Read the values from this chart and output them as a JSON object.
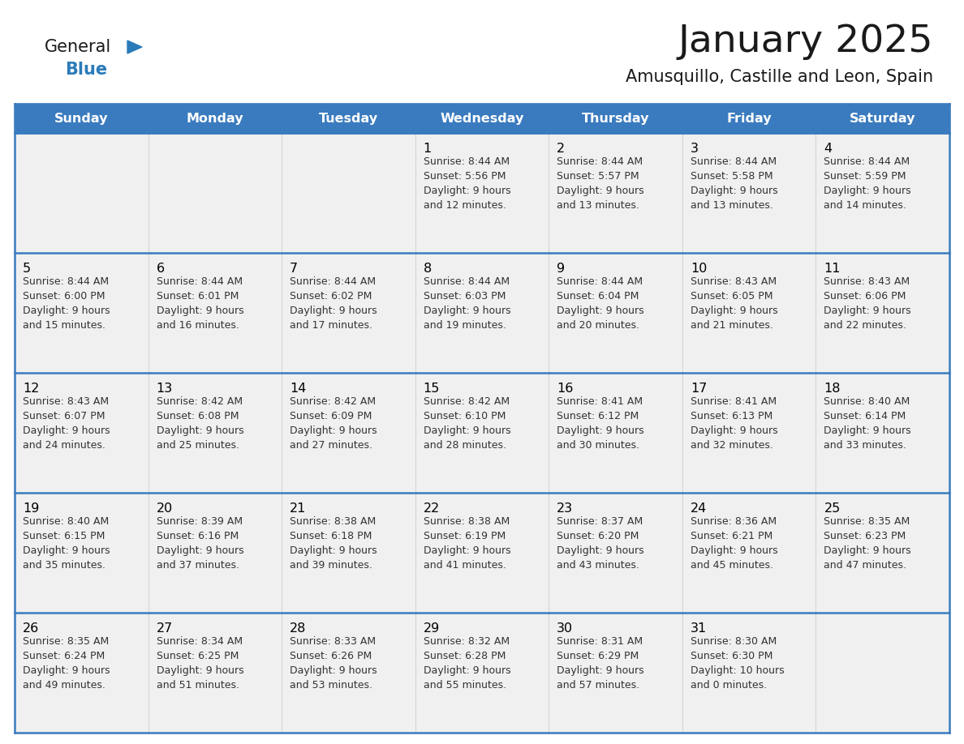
{
  "title": "January 2025",
  "subtitle": "Amusquillo, Castille and Leon, Spain",
  "days_of_week": [
    "Sunday",
    "Monday",
    "Tuesday",
    "Wednesday",
    "Thursday",
    "Friday",
    "Saturday"
  ],
  "header_bg": "#3A7BBF",
  "header_text": "#FFFFFF",
  "row_bg": "#F0F0F0",
  "cell_text": "#333333",
  "day_num_color": "#000000",
  "border_color": "#3A7BBF",
  "title_color": "#1a1a1a",
  "subtitle_color": "#1a1a1a",
  "logo_general_color": "#1a1a1a",
  "logo_blue_color": "#2B7BB9",
  "calendar_data": [
    [
      "",
      "",
      "",
      "1\nSunrise: 8:44 AM\nSunset: 5:56 PM\nDaylight: 9 hours\nand 12 minutes.",
      "2\nSunrise: 8:44 AM\nSunset: 5:57 PM\nDaylight: 9 hours\nand 13 minutes.",
      "3\nSunrise: 8:44 AM\nSunset: 5:58 PM\nDaylight: 9 hours\nand 13 minutes.",
      "4\nSunrise: 8:44 AM\nSunset: 5:59 PM\nDaylight: 9 hours\nand 14 minutes."
    ],
    [
      "5\nSunrise: 8:44 AM\nSunset: 6:00 PM\nDaylight: 9 hours\nand 15 minutes.",
      "6\nSunrise: 8:44 AM\nSunset: 6:01 PM\nDaylight: 9 hours\nand 16 minutes.",
      "7\nSunrise: 8:44 AM\nSunset: 6:02 PM\nDaylight: 9 hours\nand 17 minutes.",
      "8\nSunrise: 8:44 AM\nSunset: 6:03 PM\nDaylight: 9 hours\nand 19 minutes.",
      "9\nSunrise: 8:44 AM\nSunset: 6:04 PM\nDaylight: 9 hours\nand 20 minutes.",
      "10\nSunrise: 8:43 AM\nSunset: 6:05 PM\nDaylight: 9 hours\nand 21 minutes.",
      "11\nSunrise: 8:43 AM\nSunset: 6:06 PM\nDaylight: 9 hours\nand 22 minutes."
    ],
    [
      "12\nSunrise: 8:43 AM\nSunset: 6:07 PM\nDaylight: 9 hours\nand 24 minutes.",
      "13\nSunrise: 8:42 AM\nSunset: 6:08 PM\nDaylight: 9 hours\nand 25 minutes.",
      "14\nSunrise: 8:42 AM\nSunset: 6:09 PM\nDaylight: 9 hours\nand 27 minutes.",
      "15\nSunrise: 8:42 AM\nSunset: 6:10 PM\nDaylight: 9 hours\nand 28 minutes.",
      "16\nSunrise: 8:41 AM\nSunset: 6:12 PM\nDaylight: 9 hours\nand 30 minutes.",
      "17\nSunrise: 8:41 AM\nSunset: 6:13 PM\nDaylight: 9 hours\nand 32 minutes.",
      "18\nSunrise: 8:40 AM\nSunset: 6:14 PM\nDaylight: 9 hours\nand 33 minutes."
    ],
    [
      "19\nSunrise: 8:40 AM\nSunset: 6:15 PM\nDaylight: 9 hours\nand 35 minutes.",
      "20\nSunrise: 8:39 AM\nSunset: 6:16 PM\nDaylight: 9 hours\nand 37 minutes.",
      "21\nSunrise: 8:38 AM\nSunset: 6:18 PM\nDaylight: 9 hours\nand 39 minutes.",
      "22\nSunrise: 8:38 AM\nSunset: 6:19 PM\nDaylight: 9 hours\nand 41 minutes.",
      "23\nSunrise: 8:37 AM\nSunset: 6:20 PM\nDaylight: 9 hours\nand 43 minutes.",
      "24\nSunrise: 8:36 AM\nSunset: 6:21 PM\nDaylight: 9 hours\nand 45 minutes.",
      "25\nSunrise: 8:35 AM\nSunset: 6:23 PM\nDaylight: 9 hours\nand 47 minutes."
    ],
    [
      "26\nSunrise: 8:35 AM\nSunset: 6:24 PM\nDaylight: 9 hours\nand 49 minutes.",
      "27\nSunrise: 8:34 AM\nSunset: 6:25 PM\nDaylight: 9 hours\nand 51 minutes.",
      "28\nSunrise: 8:33 AM\nSunset: 6:26 PM\nDaylight: 9 hours\nand 53 minutes.",
      "29\nSunrise: 8:32 AM\nSunset: 6:28 PM\nDaylight: 9 hours\nand 55 minutes.",
      "30\nSunrise: 8:31 AM\nSunset: 6:29 PM\nDaylight: 9 hours\nand 57 minutes.",
      "31\nSunrise: 8:30 AM\nSunset: 6:30 PM\nDaylight: 10 hours\nand 0 minutes.",
      ""
    ]
  ],
  "num_rows": 5,
  "num_cols": 7,
  "fig_width": 11.88,
  "fig_height": 9.18,
  "dpi": 100
}
